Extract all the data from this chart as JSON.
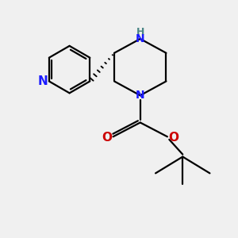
{
  "bg_color": "#f0f0f0",
  "bond_color": "#000000",
  "N_color": "#1a1aff",
  "NH_color": "#4a8585",
  "O_color": "#cc0000",
  "lw": 1.6,
  "figsize": [
    3.0,
    3.0
  ],
  "dpi": 100,
  "xlim": [
    0,
    10
  ],
  "ylim": [
    0,
    10
  ]
}
